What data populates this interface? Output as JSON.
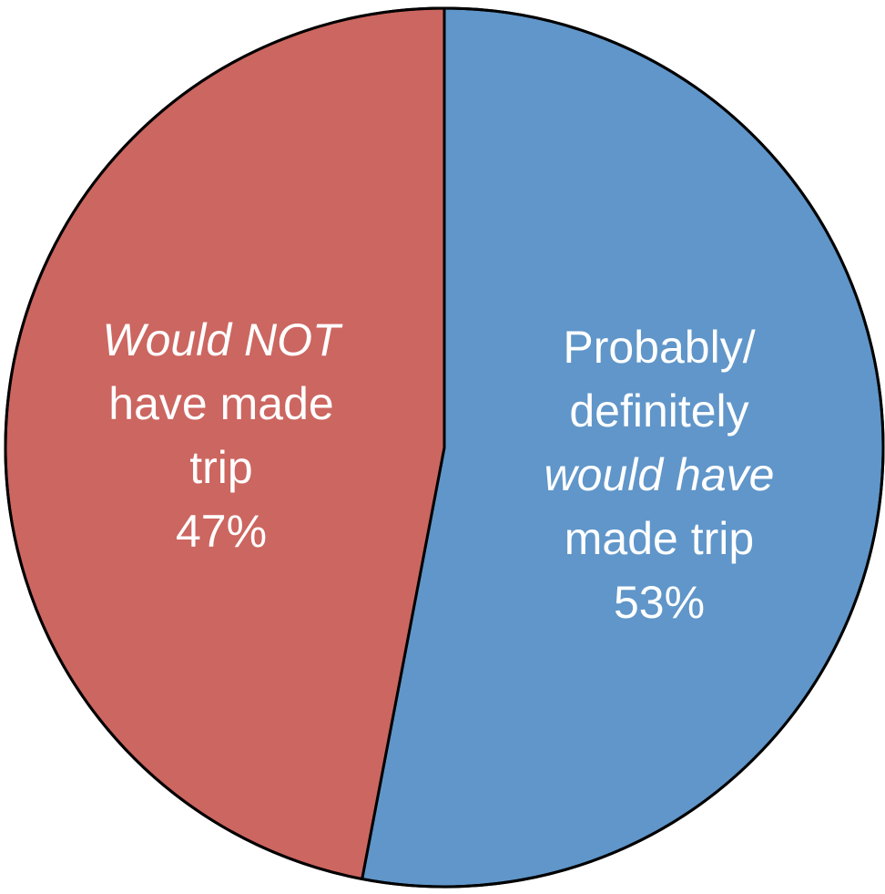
{
  "chart_data": {
    "type": "pie",
    "start_angle_deg": 0,
    "direction": "clockwise",
    "slices": [
      {
        "name": "Probably/ definitely would have made trip",
        "value": 53,
        "color": "#6096c9",
        "label_lines": [
          {
            "parts": [
              {
                "text": "Probably/",
                "italic": false
              }
            ]
          },
          {
            "parts": [
              {
                "text": "definitely",
                "italic": false
              }
            ]
          },
          {
            "parts": [
              {
                "text": "would have",
                "italic": true
              }
            ]
          },
          {
            "parts": [
              {
                "text": "made trip",
                "italic": false
              }
            ]
          },
          {
            "parts": [
              {
                "text": "53%",
                "italic": false
              }
            ]
          }
        ]
      },
      {
        "name": "Would NOT have made trip",
        "value": 47,
        "color": "#cc6660",
        "label_lines": [
          {
            "parts": [
              {
                "text": "Would NOT",
                "italic": true
              }
            ]
          },
          {
            "parts": [
              {
                "text": "have made",
                "italic": false
              }
            ]
          },
          {
            "parts": [
              {
                "text": "trip",
                "italic": false
              }
            ]
          },
          {
            "parts": [
              {
                "text": "47%",
                "italic": false
              }
            ]
          }
        ]
      }
    ],
    "border_color": "#000000"
  }
}
